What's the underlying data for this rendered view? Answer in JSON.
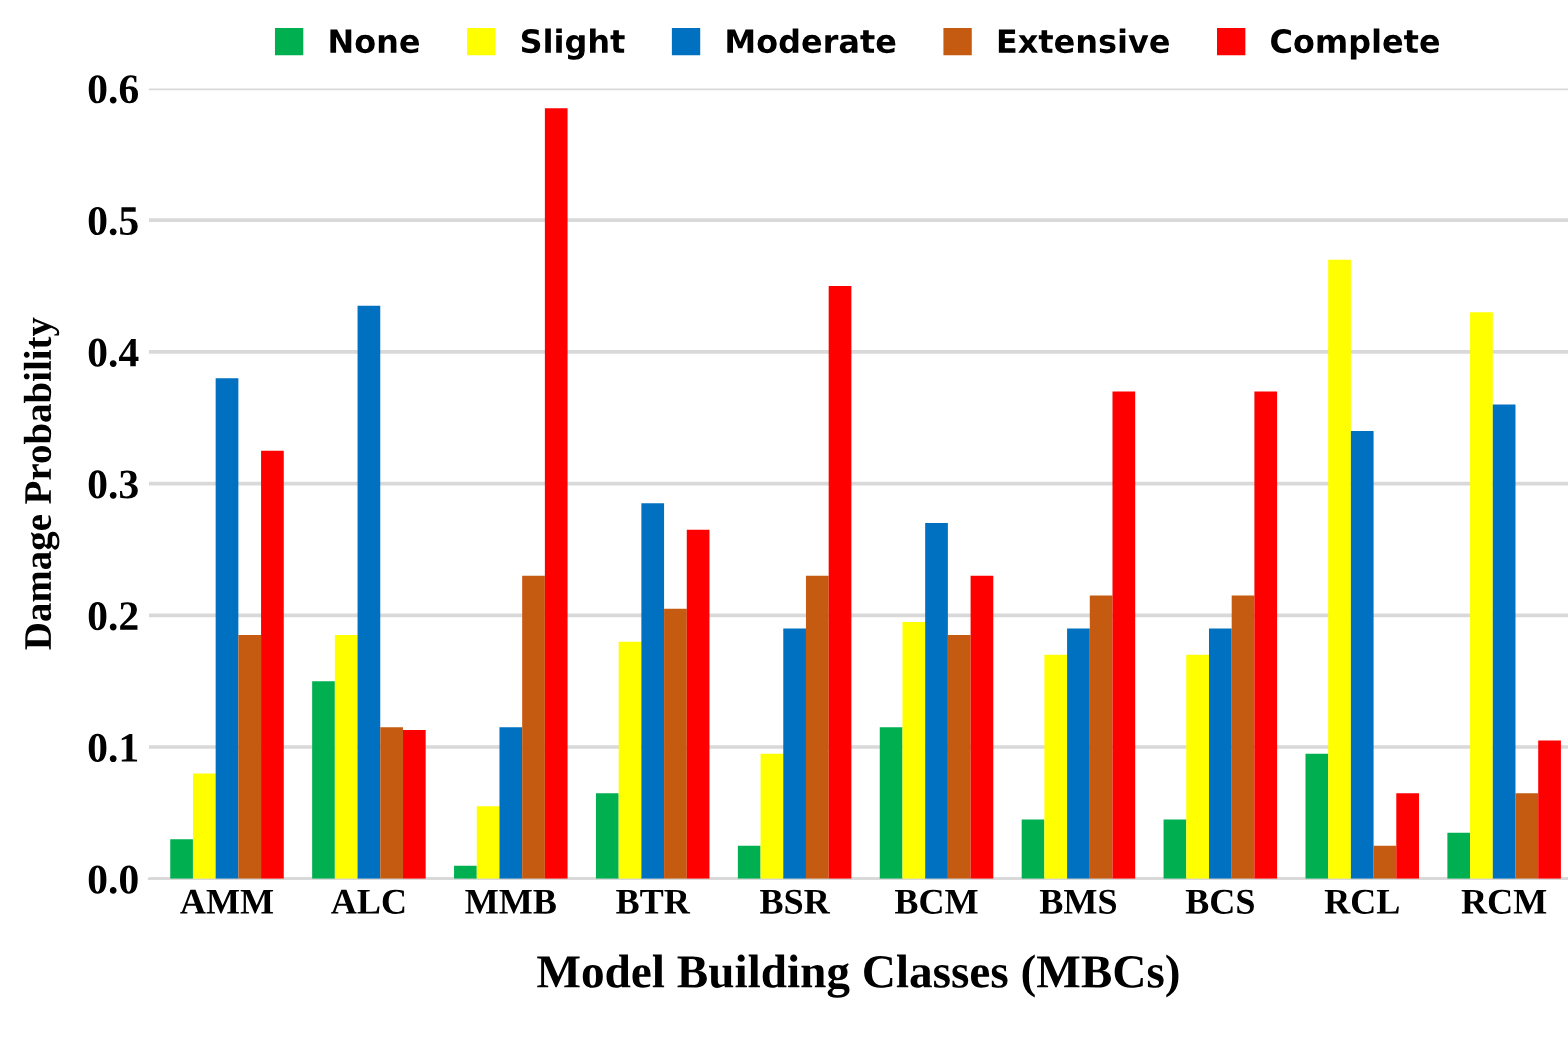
{
  "chart_data": {
    "type": "bar",
    "xlabel": "Model Building Classes (MBCs)",
    "ylabel": "Damage Probability",
    "categories": [
      "AMM",
      "ALC",
      "MMB",
      "BTR",
      "BSR",
      "BCM",
      "BMS",
      "BCS",
      "RCL",
      "RCM"
    ],
    "series": [
      {
        "name": "None",
        "color": "#00b050",
        "values": [
          0.03,
          0.15,
          0.01,
          0.065,
          0.025,
          0.115,
          0.045,
          0.045,
          0.095,
          0.035
        ]
      },
      {
        "name": "Slight",
        "color": "#ffff00",
        "values": [
          0.08,
          0.185,
          0.055,
          0.18,
          0.095,
          0.195,
          0.17,
          0.17,
          0.47,
          0.43
        ]
      },
      {
        "name": "Moderate",
        "color": "#0070c0",
        "values": [
          0.38,
          0.435,
          0.115,
          0.285,
          0.19,
          0.27,
          0.19,
          0.19,
          0.34,
          0.36
        ]
      },
      {
        "name": "Extensive",
        "color": "#c55a11",
        "values": [
          0.185,
          0.115,
          0.23,
          0.205,
          0.23,
          0.185,
          0.215,
          0.215,
          0.025,
          0.065
        ]
      },
      {
        "name": "Complete",
        "color": "#ff0000",
        "values": [
          0.325,
          0.113,
          0.585,
          0.265,
          0.45,
          0.23,
          0.37,
          0.37,
          0.065,
          0.105
        ]
      }
    ],
    "ylim": [
      0,
      0.6
    ],
    "yticks": [
      {
        "value": 0,
        "label": "0.0"
      },
      0.1,
      0.2,
      0.3,
      0.4,
      0.5,
      0.6
    ],
    "grid": "y",
    "legend": "top"
  }
}
